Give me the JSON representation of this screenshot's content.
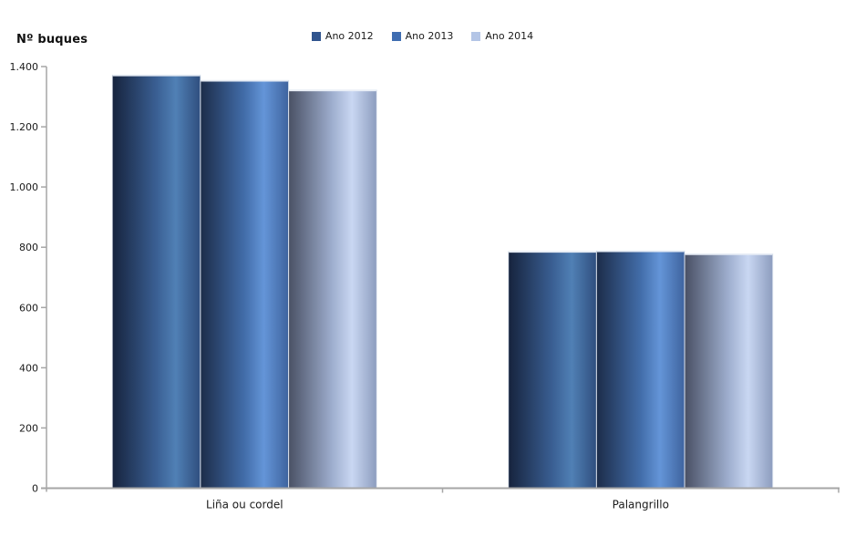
{
  "chart_data": {
    "type": "bar",
    "title": "",
    "ylabel": "Nº buques",
    "xlabel": "",
    "categories": [
      "Liña ou cordel",
      "Palangrillo"
    ],
    "series": [
      {
        "name": "Ano 2012",
        "values": [
          1372,
          786
        ],
        "legend_color": "#30548E",
        "gradient": [
          {
            "offset": 0,
            "color": "#16233D"
          },
          {
            "offset": 0.5,
            "color": "#3A5F93"
          },
          {
            "offset": 0.72,
            "color": "#5080B5"
          },
          {
            "offset": 1,
            "color": "#2F4E7E"
          }
        ]
      },
      {
        "name": "Ano 2013",
        "values": [
          1354,
          788
        ],
        "legend_color": "#3F6DB1",
        "gradient": [
          {
            "offset": 0,
            "color": "#1C2C49"
          },
          {
            "offset": 0.5,
            "color": "#426DA9"
          },
          {
            "offset": 0.72,
            "color": "#6495D8"
          },
          {
            "offset": 1,
            "color": "#3E639E"
          }
        ]
      },
      {
        "name": "Ano 2014",
        "values": [
          1322,
          778
        ],
        "legend_color": "#B3C5E6",
        "gradient": [
          {
            "offset": 0,
            "color": "#495064"
          },
          {
            "offset": 0.5,
            "color": "#9FAFCF"
          },
          {
            "offset": 0.72,
            "color": "#C9D7F2"
          },
          {
            "offset": 1,
            "color": "#8C9CBE"
          }
        ]
      }
    ],
    "ylim": [
      0,
      1400
    ],
    "yticks": [
      0,
      200,
      400,
      600,
      800,
      1000,
      1200,
      1400
    ],
    "ytick_labels": [
      "0",
      "200",
      "400",
      "600",
      "800",
      "1.000",
      "1.200",
      "1.400"
    ],
    "grid": false,
    "legend_position": "top-center",
    "axis_color": "#A6A6A6",
    "text_color": "#1A1A1A"
  }
}
